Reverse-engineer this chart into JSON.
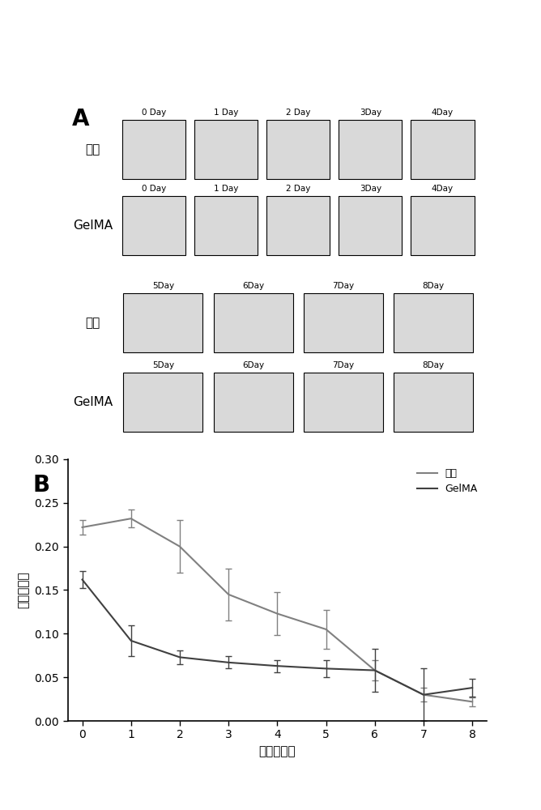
{
  "panel_A_label": "A",
  "panel_B_label": "B",
  "row1_labels": [
    "0 Day",
    "1 Day",
    "2 Day",
    "3Day",
    "4Day"
  ],
  "row2_labels": [
    "0 Day",
    "1 Day",
    "2 Day",
    "3Day",
    "4Day"
  ],
  "row3_labels": [
    "5Day",
    "6Day",
    "7Day",
    "8Day"
  ],
  "row4_labels": [
    "5Day",
    "6Day",
    "7Day",
    "8Day"
  ],
  "group1_label": "空白",
  "group2_label": "GelMA",
  "x_days": [
    0,
    1,
    2,
    3,
    4,
    5,
    6,
    7,
    8
  ],
  "kongbai_y": [
    0.222,
    0.232,
    0.2,
    0.145,
    0.123,
    0.105,
    0.058,
    0.03,
    0.022
  ],
  "kongbai_yerr": [
    0.008,
    0.01,
    0.03,
    0.03,
    0.025,
    0.022,
    0.012,
    0.008,
    0.005
  ],
  "gelma_y": [
    0.162,
    0.092,
    0.073,
    0.067,
    0.063,
    0.06,
    0.058,
    0.03,
    0.038
  ],
  "gelma_yerr": [
    0.01,
    0.018,
    0.008,
    0.007,
    0.007,
    0.01,
    0.025,
    0.03,
    0.01
  ],
  "ylabel": "创面愈合率",
  "xlabel": "时间（天）",
  "ylim": [
    0,
    0.3
  ],
  "yticks": [
    0,
    0.05,
    0.1,
    0.15,
    0.2,
    0.25,
    0.3
  ],
  "line_color_kongbai": "#808080",
  "line_color_gelma": "#404040",
  "bg_color": "#ffffff"
}
